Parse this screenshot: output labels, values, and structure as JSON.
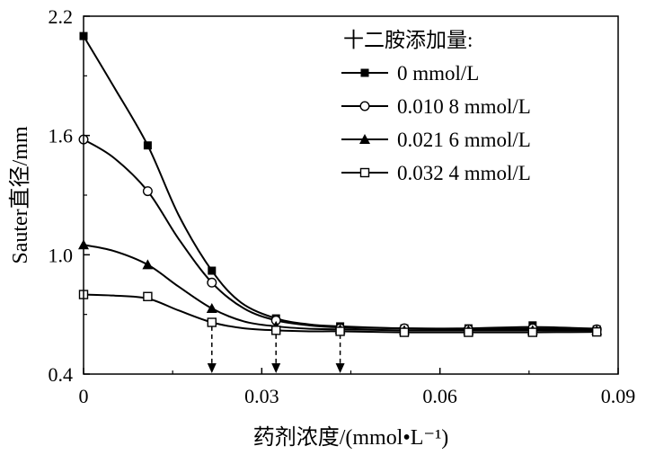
{
  "chart_data": {
    "type": "line",
    "xlabel": "药剂浓度/(mmol•L⁻¹)",
    "ylabel": "Sauter直径/mm",
    "xlim": [
      0,
      0.09
    ],
    "ylim": [
      0.4,
      2.2
    ],
    "xticks": [
      0,
      0.03,
      0.06,
      0.09
    ],
    "xtick_labels": [
      "0",
      "0.03",
      "0.06",
      "0.09"
    ],
    "yticks": [
      0.4,
      1.0,
      1.6,
      2.2
    ],
    "ytick_labels": [
      "0.4",
      "1.0",
      "1.6",
      "2.2"
    ],
    "legend": {
      "title": "十二胺添加量:",
      "placement": "top-right"
    },
    "x": [
      0,
      0.0108,
      0.0216,
      0.0324,
      0.0432,
      0.054,
      0.0648,
      0.0756,
      0.0864
    ],
    "series": [
      {
        "name": "0 mmol/L",
        "marker": "filled-square",
        "values": [
          2.1,
          1.55,
          0.92,
          0.68,
          0.64,
          0.63,
          0.63,
          0.645,
          0.625
        ],
        "curve": [
          [
            0,
            2.1
          ],
          [
            0.005,
            1.85
          ],
          [
            0.0108,
            1.55
          ],
          [
            0.016,
            1.2
          ],
          [
            0.0216,
            0.92
          ],
          [
            0.0265,
            0.76
          ],
          [
            0.0324,
            0.68
          ],
          [
            0.038,
            0.65
          ],
          [
            0.0432,
            0.64
          ],
          [
            0.054,
            0.63
          ],
          [
            0.0648,
            0.63
          ],
          [
            0.0756,
            0.637
          ],
          [
            0.0864,
            0.628
          ]
        ]
      },
      {
        "name": "0.010 8 mmol/L",
        "marker": "open-circle",
        "values": [
          1.58,
          1.32,
          0.86,
          0.67,
          0.63,
          0.63,
          0.625,
          0.63,
          0.625
        ],
        "curve": [
          [
            0,
            1.58
          ],
          [
            0.005,
            1.49
          ],
          [
            0.0108,
            1.32
          ],
          [
            0.016,
            1.08
          ],
          [
            0.0216,
            0.86
          ],
          [
            0.027,
            0.73
          ],
          [
            0.0324,
            0.67
          ],
          [
            0.038,
            0.645
          ],
          [
            0.0432,
            0.635
          ],
          [
            0.054,
            0.63
          ],
          [
            0.0648,
            0.627
          ],
          [
            0.0756,
            0.628
          ],
          [
            0.0864,
            0.625
          ]
        ]
      },
      {
        "name": "0.021 6 mmol/L",
        "marker": "filled-triangle",
        "values": [
          1.05,
          0.95,
          0.73,
          0.64,
          0.625,
          0.62,
          0.62,
          0.62,
          0.62
        ],
        "curve": [
          [
            0,
            1.05
          ],
          [
            0.005,
            1.02
          ],
          [
            0.0108,
            0.95
          ],
          [
            0.016,
            0.84
          ],
          [
            0.0216,
            0.73
          ],
          [
            0.027,
            0.665
          ],
          [
            0.0324,
            0.64
          ],
          [
            0.038,
            0.628
          ],
          [
            0.0432,
            0.625
          ],
          [
            0.054,
            0.62
          ],
          [
            0.0648,
            0.62
          ],
          [
            0.0756,
            0.62
          ],
          [
            0.0864,
            0.62
          ]
        ]
      },
      {
        "name": "0.032 4 mmol/L",
        "marker": "open-square",
        "values": [
          0.8,
          0.79,
          0.66,
          0.62,
          0.615,
          0.61,
          0.61,
          0.61,
          0.612
        ],
        "curve": [
          [
            0,
            0.8
          ],
          [
            0.005,
            0.795
          ],
          [
            0.0108,
            0.78
          ],
          [
            0.016,
            0.72
          ],
          [
            0.0216,
            0.66
          ],
          [
            0.027,
            0.63
          ],
          [
            0.0324,
            0.62
          ],
          [
            0.038,
            0.615
          ],
          [
            0.0432,
            0.615
          ],
          [
            0.054,
            0.61
          ],
          [
            0.0648,
            0.61
          ],
          [
            0.0756,
            0.61
          ],
          [
            0.0864,
            0.612
          ]
        ]
      }
    ],
    "annotations": {
      "dashed_arrows_at_x": [
        0.0216,
        0.0324,
        0.0432
      ]
    },
    "grid": false
  }
}
